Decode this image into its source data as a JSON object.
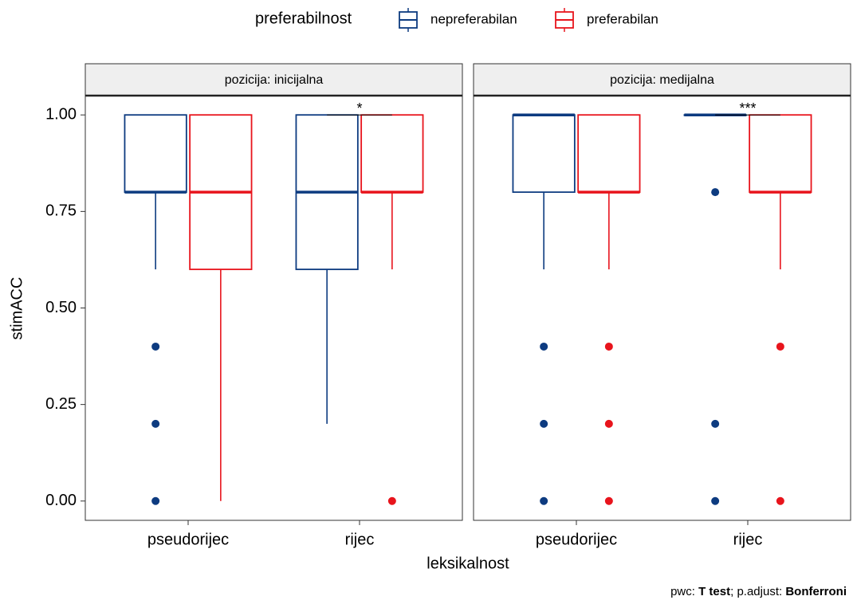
{
  "chart_data": {
    "type": "box",
    "legend_title": "preferabilnost",
    "series": [
      {
        "name": "nepreferabilan",
        "color": "#0d3b80"
      },
      {
        "name": "preferabilan",
        "color": "#e8141c"
      }
    ],
    "categories": [
      "pseudorijec",
      "rijec"
    ],
    "x_label": "leksikalnost",
    "y_label": "stimACC",
    "ylim": [
      -0.05,
      1.05
    ],
    "yticks": [
      {
        "value": 0,
        "label": "0.00"
      },
      {
        "value": 0.25,
        "label": "0.25"
      },
      {
        "value": 0.5,
        "label": "0.50"
      },
      {
        "value": 0.75,
        "label": "0.75"
      },
      {
        "value": 1,
        "label": "1.00"
      }
    ],
    "facets": [
      {
        "label": "pozicija: inicijalna",
        "groups": [
          [
            {
              "low": 0.6,
              "q1": 0.8,
              "median": 0.8,
              "q3": 1.0,
              "high": 1.0,
              "outliers": [
                0.4,
                0.2,
                0
              ]
            },
            {
              "low": 0,
              "q1": 0.6,
              "median": 0.8,
              "q3": 1.0,
              "high": 1.0,
              "outliers": []
            }
          ],
          [
            {
              "low": 0.2,
              "q1": 0.6,
              "median": 0.8,
              "q3": 1.0,
              "high": 1.0,
              "outliers": []
            },
            {
              "low": 0.6,
              "q1": 0.8,
              "median": 0.8,
              "q3": 1.0,
              "high": 1.0,
              "outliers": [
                0
              ]
            }
          ]
        ],
        "annotations": [
          {
            "category": 1,
            "label": "*",
            "y": 1.0
          }
        ]
      },
      {
        "label": "pozicija: medijalna",
        "groups": [
          [
            {
              "low": 0.6,
              "q1": 0.8,
              "median": 1.0,
              "q3": 1.0,
              "high": 1.0,
              "outliers": [
                0.4,
                0.2,
                0
              ]
            },
            {
              "low": 0.6,
              "q1": 0.8,
              "median": 0.8,
              "q3": 1.0,
              "high": 1.0,
              "outliers": [
                0.4,
                0.2,
                0
              ]
            }
          ],
          [
            {
              "low": 1.0,
              "q1": 1.0,
              "median": 1.0,
              "q3": 1.0,
              "high": 1.0,
              "outliers": [
                0.8,
                0.2,
                0
              ]
            },
            {
              "low": 0.6,
              "q1": 0.8,
              "median": 0.8,
              "q3": 1.0,
              "high": 1.0,
              "outliers": [
                0.4,
                0
              ]
            }
          ]
        ],
        "annotations": [
          {
            "category": 1,
            "label": "***",
            "y": 1.0
          }
        ]
      }
    ],
    "caption": [
      "pwc: ",
      "T test",
      "; p.adjust: ",
      "Bonferroni"
    ]
  }
}
